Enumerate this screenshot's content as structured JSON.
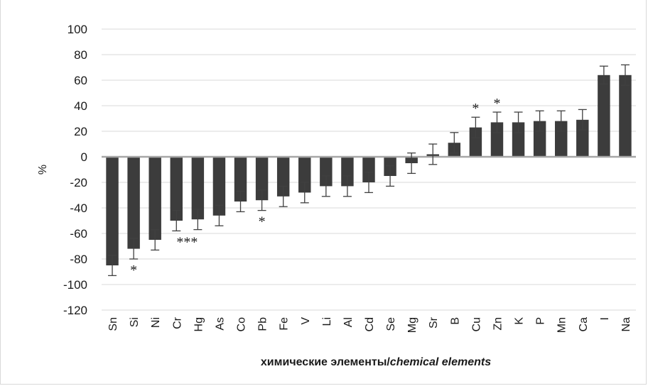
{
  "chart_data": {
    "type": "bar",
    "xlabel_normal": "химические элементы/",
    "xlabel_italic": "chemical elements",
    "ylabel": "%",
    "ylim": [
      -120,
      100
    ],
    "yticks": [
      100,
      80,
      60,
      40,
      20,
      0,
      -20,
      -40,
      -60,
      -80,
      -100,
      -120
    ],
    "grid": true,
    "bar_color": "#3c3c3c",
    "grid_color": "#d9d9d9",
    "zero_line_color": "#a6a6a6",
    "categories": [
      "Sn",
      "Si",
      "Ni",
      "Cr",
      "Hg",
      "As",
      "Co",
      "Pb",
      "Fe",
      "V",
      "Li",
      "Al",
      "Cd",
      "Se",
      "Mg",
      "Sr",
      "B",
      "Cu",
      "Zn",
      "K",
      "P",
      "Mn",
      "Ca",
      "I",
      "Na"
    ],
    "values": [
      -85,
      -72,
      -65,
      -50,
      -49,
      -46,
      -35,
      -34,
      -31,
      -28,
      -23,
      -23,
      -20,
      -15,
      -5,
      2,
      11,
      23,
      27,
      27,
      28,
      28,
      29,
      64,
      64
    ],
    "errors": [
      8,
      8,
      8,
      8,
      8,
      8,
      8,
      8,
      8,
      8,
      8,
      8,
      8,
      8,
      8,
      8,
      8,
      8,
      8,
      8,
      8,
      8,
      8,
      7,
      8
    ],
    "annotations": [
      {
        "category": "Si",
        "text": "*"
      },
      {
        "category": "Cr",
        "text": "***"
      },
      {
        "category": "Pb",
        "text": "*"
      },
      {
        "category": "Cu",
        "text": "*"
      },
      {
        "category": "Zn",
        "text": "*"
      }
    ]
  }
}
